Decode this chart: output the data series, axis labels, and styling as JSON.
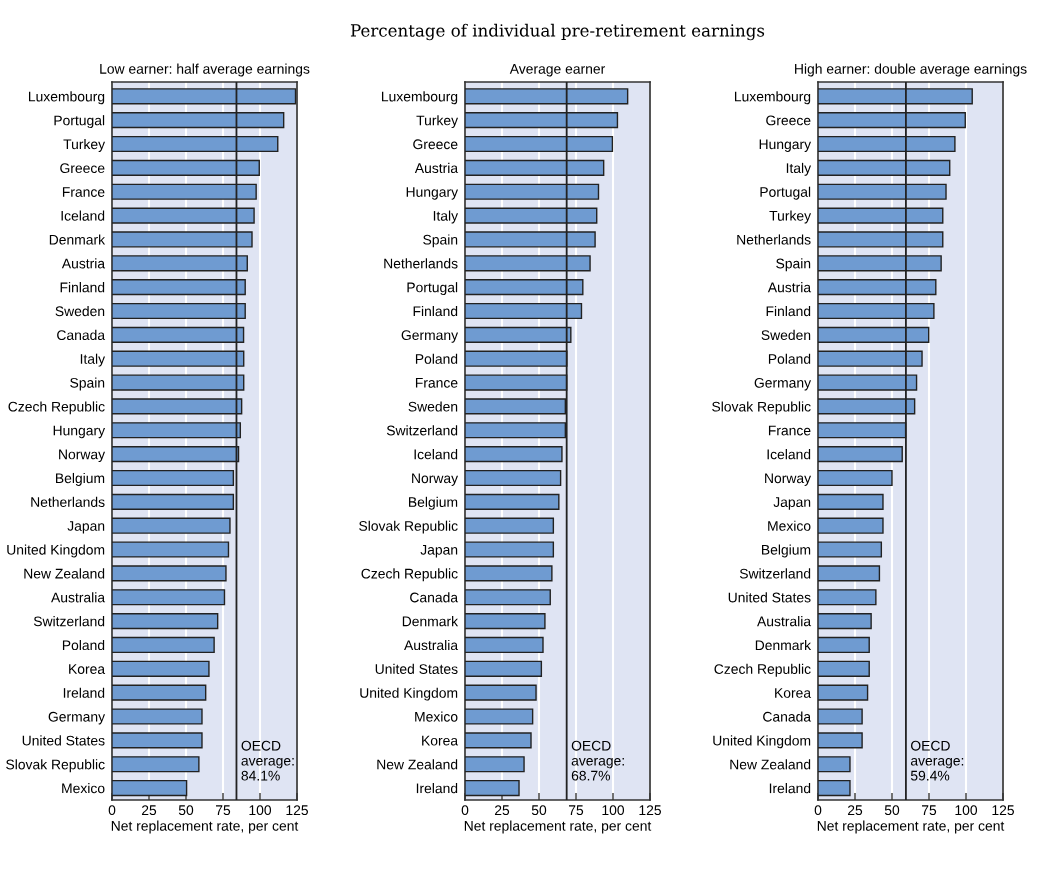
{
  "chart_data": [
    {
      "type": "bar",
      "orientation": "horizontal",
      "title": "Low earner: half average earnings",
      "xlabel": "Net replacement rate, per cent",
      "categories": [
        "Luxembourg",
        "Portugal",
        "Turkey",
        "Greece",
        "France",
        "Iceland",
        "Denmark",
        "Austria",
        "Finland",
        "Sweden",
        "Canada",
        "Italy",
        "Spain",
        "Czech Republic",
        "Hungary",
        "Norway",
        "Belgium",
        "Netherlands",
        "Japan",
        "United Kingdom",
        "New Zealand",
        "Australia",
        "Switzerland",
        "Poland",
        "Korea",
        "Ireland",
        "Germany",
        "United States",
        "Slovak Republic",
        "Mexico"
      ],
      "values": [
        124,
        116,
        112,
        99.5,
        97.4,
        96,
        94.6,
        91.4,
        90,
        90,
        88.9,
        89,
        89,
        87.6,
        86.7,
        85.5,
        82,
        82,
        79.7,
        78.7,
        77,
        76,
        71.4,
        69,
        65.5,
        63.3,
        60.8,
        60.8,
        58.7,
        50.4
      ],
      "color": "#6f9bd1",
      "xlim": [
        0,
        125
      ],
      "xticks": [
        0,
        25,
        50,
        75,
        100,
        125
      ],
      "grid": "x",
      "ref_lines": [
        {
          "axis": "x",
          "value": 84.1,
          "label": "OECD\naverage:\n84.1%"
        }
      ]
    },
    {
      "type": "bar",
      "orientation": "horizontal",
      "subtitle": "Percentage of individual pre-retirement earnings",
      "title": "Average earner",
      "xlabel": "Net replacement rate, per cent",
      "categories": [
        "Luxembourg",
        "Turkey",
        "Greece",
        "Austria",
        "Hungary",
        "Italy",
        "Spain",
        "Netherlands",
        "Portugal",
        "Finland",
        "Germany",
        "Poland",
        "France",
        "Sweden",
        "Switzerland",
        "Iceland",
        "Norway",
        "Belgium",
        "Slovak Republic",
        "Japan",
        "Czech Republic",
        "Canada",
        "Denmark",
        "Australia",
        "United States",
        "United Kingdom",
        "Mexico",
        "Korea",
        "New Zealand",
        "Ireland"
      ],
      "values": [
        109.9,
        103,
        99.6,
        93.7,
        90.2,
        89,
        87.9,
        84.5,
        79.6,
        78.7,
        71.5,
        68.8,
        68.7,
        67.8,
        67.8,
        65.5,
        64.6,
        63.4,
        59.7,
        59.7,
        58.7,
        57.6,
        54,
        52.7,
        51.6,
        48,
        45.7,
        44.6,
        39.9,
        36.5
      ],
      "color": "#6f9bd1",
      "xlim": [
        0,
        125
      ],
      "xticks": [
        0,
        25,
        50,
        75,
        100,
        125
      ],
      "grid": "x",
      "ref_lines": [
        {
          "axis": "x",
          "value": 68.7,
          "label": "OECD\naverage:\n68.7%"
        }
      ]
    },
    {
      "type": "bar",
      "orientation": "horizontal",
      "title": "High earner: double average earnings",
      "xlabel": "Net replacement rate, per cent",
      "categories": [
        "Luxembourg",
        "Greece",
        "Hungary",
        "Italy",
        "Portugal",
        "Turkey",
        "Netherlands",
        "Spain",
        "Austria",
        "Finland",
        "Sweden",
        "Poland",
        "Germany",
        "Slovak Republic",
        "France",
        "Iceland",
        "Norway",
        "Japan",
        "Mexico",
        "Belgium",
        "Switzerland",
        "United States",
        "Australia",
        "Denmark",
        "Czech Republic",
        "Korea",
        "Canada",
        "United Kingdom",
        "New Zealand",
        "Ireland"
      ],
      "values": [
        104.2,
        99.5,
        92.5,
        89,
        86.5,
        84.3,
        84.3,
        83.2,
        79.6,
        78.3,
        74.8,
        70.3,
        66.6,
        65.3,
        59.2,
        56.9,
        50,
        43.9,
        43.9,
        42.8,
        41.5,
        39.1,
        35.9,
        34.6,
        34.6,
        33.5,
        29.8,
        29.8,
        21.6,
        21.6
      ],
      "color": "#6f9bd1",
      "xlim": [
        0,
        125
      ],
      "xticks": [
        0,
        25,
        50,
        75,
        100,
        125
      ],
      "grid": "x",
      "ref_lines": [
        {
          "axis": "x",
          "value": 59.4,
          "label": "OECD\naverage:\n59.4%"
        }
      ]
    }
  ]
}
